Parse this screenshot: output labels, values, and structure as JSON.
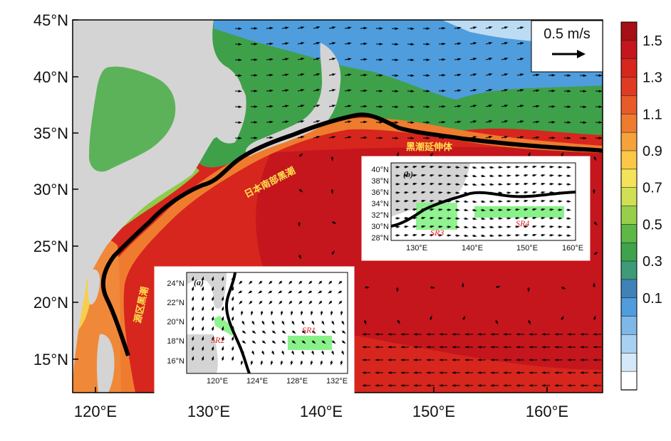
{
  "map": {
    "lat_labels": [
      "45°N",
      "40°N",
      "35°N",
      "30°N",
      "25°N",
      "20°N",
      "15°N"
    ],
    "lon_labels": [
      "120°E",
      "130°E",
      "140°E",
      "150°E",
      "160°E"
    ],
    "extent": {
      "lon": [
        118,
        165
      ],
      "lat": [
        12,
        45
      ]
    },
    "annotations": {
      "kuroshio_extension": "黑潮延伸体",
      "kuroshio_south_japan": "日本南部黑潮",
      "kuroshio_source": "源区黑潮"
    },
    "scale_vector_label": "0.5 m/s",
    "colors": {
      "land": "#d4d4d4",
      "vector": "#000000"
    }
  },
  "colorbar": {
    "labels": [
      "1.5",
      "1.3",
      "1.1",
      "0.9",
      "0.7",
      "0.5",
      "0.3",
      "0.1"
    ],
    "colors": [
      "#a50f15",
      "#c4161c",
      "#d7261e",
      "#e03a22",
      "#e85a28",
      "#ef7c2e",
      "#f5a23a",
      "#fbc846",
      "#f4e25a",
      "#cfe055",
      "#98cf4a",
      "#5db845",
      "#3ea34a",
      "#3e9a78",
      "#3f82b8",
      "#4f9ddd",
      "#7eb8e8",
      "#a8d1f1",
      "#d3e8f8",
      "#ffffff"
    ]
  },
  "inset_a": {
    "panel_label": "(a)",
    "lat_labels": [
      "24°N",
      "22°N",
      "20°N",
      "18°N",
      "16°N"
    ],
    "lon_labels": [
      "120°E",
      "124°E",
      "128°E",
      "132°E"
    ],
    "regions": [
      "SR1",
      "SR2"
    ]
  },
  "inset_b": {
    "panel_label": "(b)",
    "lat_labels": [
      "40°N",
      "38°N",
      "36°N",
      "34°N",
      "32°N",
      "30°N",
      "28°N"
    ],
    "lon_labels": [
      "130°E",
      "140°E",
      "150°E",
      "160°E"
    ],
    "regions": [
      "SR3",
      "SR4"
    ]
  }
}
